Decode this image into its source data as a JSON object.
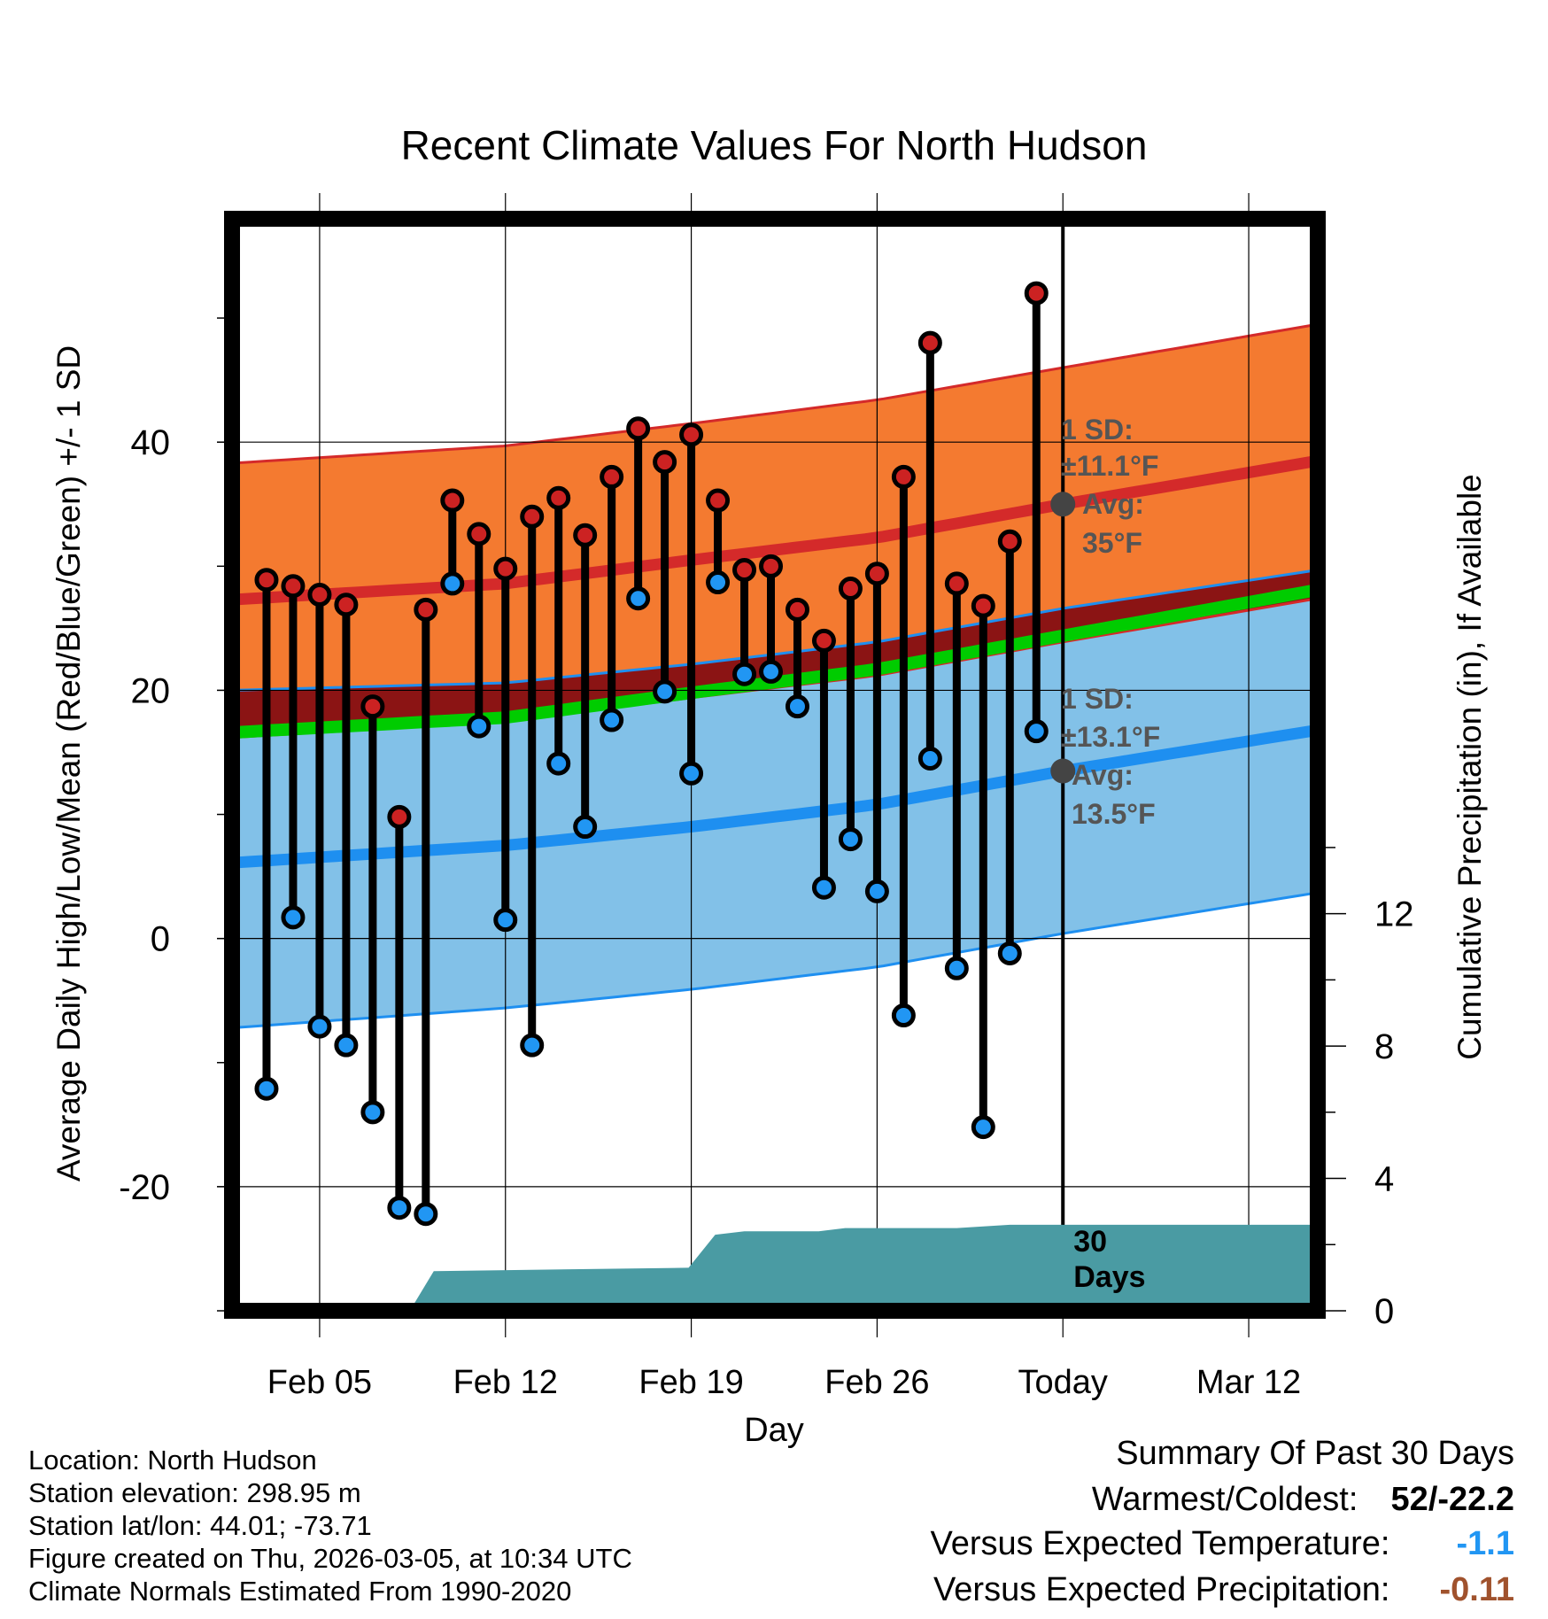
{
  "chart_data": {
    "type": "line",
    "title": "Recent Climate Values For North Hudson",
    "xlabel": "Day",
    "ylabel": "Average Daily High/Low/Mean (Red/Blue/Green) +/- 1 SD",
    "y2label": "Cumulative Precipitation (in), If Available",
    "x_range_days": [
      -31.3,
      9.6
    ],
    "ylim": [
      -30,
      58
    ],
    "y_ticks": [
      "40",
      "20",
      "0",
      "-20"
    ],
    "y2_ticks": [
      "12",
      "8",
      "4",
      "0"
    ],
    "y2_tick_values": [
      12,
      8,
      4,
      0
    ],
    "y2_range": [
      0,
      33
    ],
    "x_ticks": [
      "Feb 05",
      "Feb 12",
      "Feb 19",
      "Feb 26",
      "Today",
      "Mar 12"
    ],
    "x_tick_days": [
      -28,
      -21,
      -14,
      -7,
      0,
      7
    ],
    "today_label": "30\nDays",
    "normals": {
      "days": [
        -31.3,
        -21,
        -14,
        -7,
        0,
        9.6
      ],
      "high_upper": [
        38.3,
        39.7,
        41.5,
        43.4,
        46.0,
        49.5
      ],
      "high_mean": [
        27.3,
        28.6,
        30.5,
        32.3,
        35.0,
        38.5
      ],
      "high_lower": [
        16.2,
        17.5,
        19.4,
        21.2,
        23.9,
        27.4
      ],
      "mean": [
        16.6,
        17.8,
        19.8,
        21.7,
        24.4,
        28.1
      ],
      "low_upper": [
        20.0,
        20.6,
        22.1,
        23.9,
        26.6,
        29.7
      ],
      "low_mean": [
        6.1,
        7.5,
        9.0,
        10.8,
        13.5,
        16.8
      ],
      "low_lower": [
        -7.2,
        -5.6,
        -4.1,
        -2.3,
        0.4,
        3.7
      ]
    },
    "series": [
      {
        "name": "Daily High",
        "color": "#cc2222",
        "values": [
          28.9,
          28.4,
          27.7,
          26.9,
          18.7,
          9.8,
          26.5,
          35.3,
          32.6,
          29.8,
          34.0,
          35.5,
          32.5,
          37.2,
          41.1,
          38.4,
          40.6,
          35.3,
          29.7,
          30.0,
          26.5,
          24.0,
          28.2,
          29.4,
          37.2,
          48.0,
          28.6,
          26.8,
          32.0,
          52.0
        ]
      },
      {
        "name": "Daily Low",
        "color": "#2196f3",
        "values": [
          -12.1,
          1.7,
          -7.1,
          -8.6,
          -14.0,
          -21.7,
          -22.2,
          28.6,
          17.1,
          1.5,
          -8.6,
          14.1,
          9.0,
          17.6,
          27.4,
          19.9,
          13.3,
          28.7,
          21.3,
          21.5,
          18.7,
          4.1,
          8.0,
          3.8,
          -6.2,
          14.5,
          -2.4,
          -15.2,
          -1.2,
          16.7
        ]
      }
    ],
    "series_days": [
      -30,
      -29,
      -28,
      -27,
      -26,
      -25,
      -24,
      -23,
      -22,
      -21,
      -20,
      -19,
      -18,
      -17,
      -16,
      -15,
      -14,
      -13,
      -12,
      -11,
      -10,
      -9,
      -8,
      -7,
      -6,
      -5,
      -4,
      -3,
      -2,
      -1
    ],
    "precipitation": {
      "name": "Cumulative Precipitation",
      "color": "#4a9ba3",
      "days": [
        -31.3,
        -24.6,
        -23.7,
        -14.1,
        -13.1,
        -12.0,
        -9.2,
        -8.2,
        -4.0,
        -2.0,
        9.6
      ],
      "values": [
        0,
        0,
        1.2,
        1.3,
        2.3,
        2.4,
        2.4,
        2.5,
        2.5,
        2.6,
        2.6
      ]
    },
    "annotations": {
      "high_sd": "1 SD:",
      "high_sd_val": "±11.1°F",
      "high_avg": "Avg:",
      "high_avg_val": "35°F",
      "high_avg_value": 35.0,
      "low_sd": "1 SD:",
      "low_sd_val": "±13.1°F",
      "low_avg": "Avg:",
      "low_avg_val": "13.5°F",
      "low_avg_value": 13.5
    },
    "colors": {
      "high_band": "#f47a30",
      "high_line": "#d42a2a",
      "low_band": "#82c1e8",
      "low_line": "#1e8ff0",
      "mean_line": "#00cc00",
      "overlap": "#8b1414",
      "frame": "#000000",
      "marker_high": "#cc2222",
      "marker_low": "#2196f3"
    }
  },
  "info": {
    "location": "Location: North Hudson",
    "elevation": "Station elevation: 298.95 m",
    "latlon": "Station lat/lon: 44.01; -73.71",
    "created": "Figure created on Thu, 2026-03-05, at 10:34 UTC",
    "normals": "Climate Normals Estimated From 1990-2020"
  },
  "summary": {
    "title": "Summary Of Past 30 Days",
    "warm_label": "Warmest/Coldest:",
    "warm_value": "52/-22.2",
    "temp_label": "Versus Expected Temperature:",
    "temp_value": "-1.1",
    "temp_color": "#2196f3",
    "precip_label": "Versus Expected Precipitation:",
    "precip_value": "-0.11",
    "precip_color": "#a0522d"
  }
}
